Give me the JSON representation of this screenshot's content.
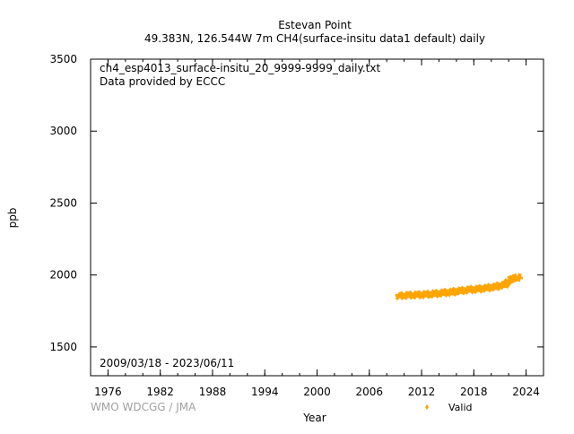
{
  "chart_data": {
    "type": "scatter",
    "title": "Estevan Point",
    "subtitle": "49.383N, 126.544W 7m    CH4(surface-insitu data1 default) daily",
    "xlabel": "Year",
    "ylabel": "ppb",
    "xlim": [
      1974,
      2026
    ],
    "ylim": [
      1300,
      3500
    ],
    "x_ticks": [
      "1976",
      "1982",
      "1988",
      "1994",
      "2000",
      "2006",
      "2012",
      "2018",
      "2024"
    ],
    "y_ticks": [
      "1500",
      "2000",
      "2500",
      "3000",
      "3500"
    ],
    "x_minor_tick_step_years": 2,
    "annotations": {
      "file": "ch4_esp4013_surface-insitu_20_9999-9999_daily.txt",
      "provider": "Data provided by ECCC",
      "period": "2009/03/18 - 2023/06/11"
    },
    "watermark": "WMO WDCGG / JMA",
    "legend": {
      "placement": "bottom-right",
      "label": "Valid"
    },
    "series": [
      {
        "name": "Valid",
        "color": "#ffa500",
        "x": [
          2009.2,
          2009.5,
          2010.0,
          2010.5,
          2011.0,
          2011.5,
          2012.0,
          2012.5,
          2013.0,
          2013.5,
          2014.0,
          2014.5,
          2015.0,
          2015.5,
          2016.0,
          2016.5,
          2017.0,
          2017.5,
          2018.0,
          2018.5,
          2019.0,
          2019.5,
          2020.0,
          2020.5,
          2021.0,
          2021.5,
          2022.0,
          2022.5,
          2023.0,
          2023.4
        ],
        "y": [
          1858,
          1848,
          1866,
          1851,
          1870,
          1852,
          1874,
          1854,
          1878,
          1858,
          1884,
          1864,
          1892,
          1868,
          1900,
          1878,
          1906,
          1886,
          1912,
          1890,
          1918,
          1898,
          1926,
          1906,
          1938,
          1920,
          1962,
          1975,
          1985,
          1980
        ],
        "spread": 18
      }
    ]
  }
}
